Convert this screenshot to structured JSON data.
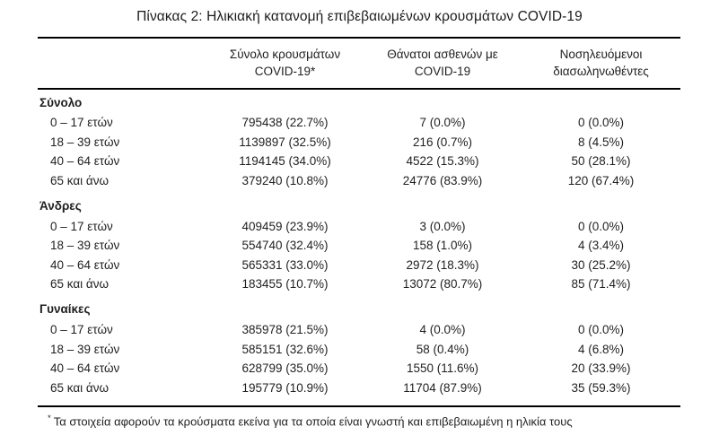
{
  "title": "Πίνακας 2: Ηλικιακή κατανομή επιβεβαιωμένων κρουσμάτων COVID-19",
  "table": {
    "columns": [
      {
        "line1": "Σύνολο κρουσμάτων",
        "line2": "COVID-19*"
      },
      {
        "line1": "Θάνατοι ασθενών με",
        "line2": "COVID-19"
      },
      {
        "line1": "Νοσηλευόμενοι",
        "line2": "διασωληνωθέντες"
      }
    ],
    "sections": [
      {
        "label": "Σύνολο",
        "rows": [
          {
            "age": "0 – 17 ετών",
            "cases": "795438 (22.7%)",
            "deaths": "7 (0.0%)",
            "intubated": "0 (0.0%)"
          },
          {
            "age": "18 – 39 ετών",
            "cases": "1139897 (32.5%)",
            "deaths": "216 (0.7%)",
            "intubated": "8 (4.5%)"
          },
          {
            "age": "40 – 64 ετών",
            "cases": "1194145 (34.0%)",
            "deaths": "4522 (15.3%)",
            "intubated": "50 (28.1%)"
          },
          {
            "age": "65 και άνω",
            "cases": "379240 (10.8%)",
            "deaths": "24776 (83.9%)",
            "intubated": "120 (67.4%)"
          }
        ]
      },
      {
        "label": "Άνδρες",
        "rows": [
          {
            "age": "0 – 17 ετών",
            "cases": "409459 (23.9%)",
            "deaths": "3 (0.0%)",
            "intubated": "0 (0.0%)"
          },
          {
            "age": "18 – 39 ετών",
            "cases": "554740 (32.4%)",
            "deaths": "158 (1.0%)",
            "intubated": "4 (3.4%)"
          },
          {
            "age": "40 – 64 ετών",
            "cases": "565331 (33.0%)",
            "deaths": "2972 (18.3%)",
            "intubated": "30 (25.2%)"
          },
          {
            "age": "65 και άνω",
            "cases": "183455 (10.7%)",
            "deaths": "13072 (80.7%)",
            "intubated": "85 (71.4%)"
          }
        ]
      },
      {
        "label": "Γυναίκες",
        "rows": [
          {
            "age": "0 – 17 ετών",
            "cases": "385978 (21.5%)",
            "deaths": "4 (0.0%)",
            "intubated": "0 (0.0%)"
          },
          {
            "age": "18 – 39 ετών",
            "cases": "585151 (32.6%)",
            "deaths": "58 (0.4%)",
            "intubated": "4 (6.8%)"
          },
          {
            "age": "40 – 64 ετών",
            "cases": "628799 (35.0%)",
            "deaths": "1550 (11.6%)",
            "intubated": "20 (33.9%)"
          },
          {
            "age": "65 και άνω",
            "cases": "195779 (10.9%)",
            "deaths": "11704 (87.9%)",
            "intubated": "35 (59.3%)"
          }
        ]
      }
    ]
  },
  "footnote": {
    "marker": "*",
    "text": "Τα στοιχεία αφορούν τα κρούσματα εκείνα για τα οποία είναι γνωστή και επιβεβαιωμένη η ηλικία τους"
  }
}
